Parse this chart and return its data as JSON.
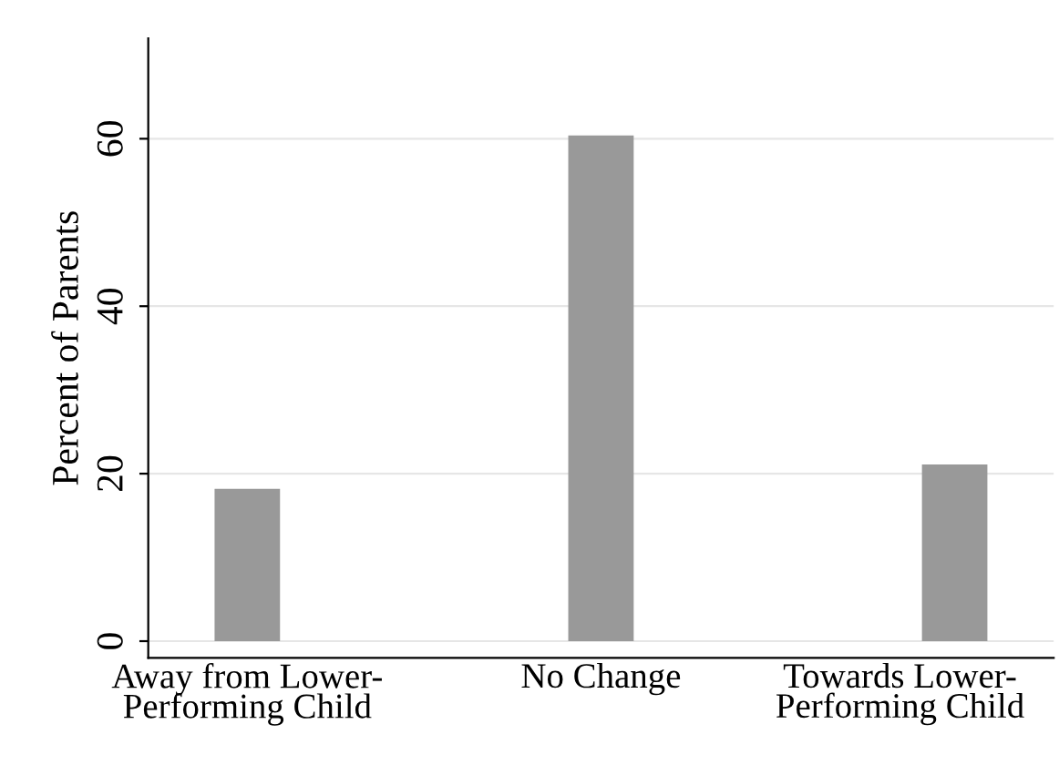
{
  "chart_data": {
    "type": "bar",
    "ylabel": "Percent of Parents",
    "categories": [
      "Away from Lower-\nPerforming Child",
      "No Change",
      "Towards Lower-\nPerforming Child"
    ],
    "values": [
      18.2,
      60.4,
      21.1
    ],
    "color": "#999999",
    "ylim": [
      -2,
      72
    ],
    "yticks": [
      0,
      20,
      40,
      60
    ],
    "grid": "y",
    "legend": false
  }
}
